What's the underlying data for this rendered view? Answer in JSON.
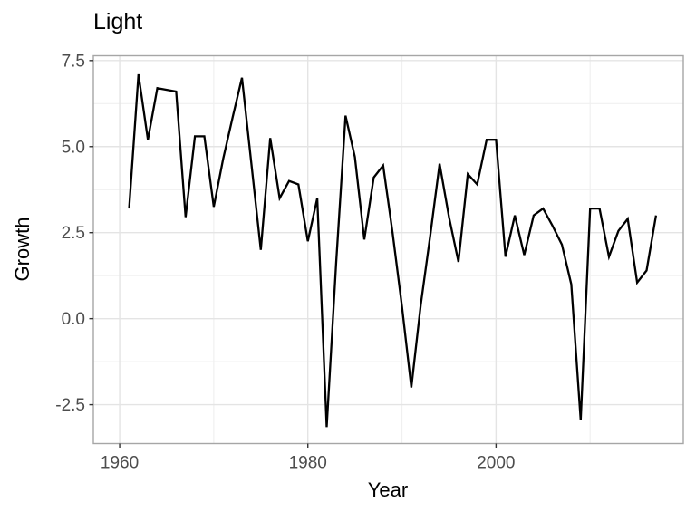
{
  "chart_data": {
    "type": "line",
    "title": "Light",
    "xlabel": "Year",
    "ylabel": "Growth",
    "legend_position": "none",
    "grid": true,
    "x_range": [
      1957.2,
      2019.9
    ],
    "y_range": [
      -3.63,
      7.64
    ],
    "x_ticks": [
      1960,
      1980,
      2000
    ],
    "x_tick_labels": [
      "1960",
      "1980",
      "2000"
    ],
    "x_minor_ticks": [
      1970,
      1990,
      2010
    ],
    "y_ticks": [
      7.5,
      5.0,
      2.5,
      0.0,
      -2.5
    ],
    "y_tick_labels": [
      "7.5",
      "5.0",
      "2.5",
      "0.0",
      "-2.5"
    ],
    "y_minor_ticks": [
      6.25,
      3.75,
      1.25,
      -1.25
    ],
    "x": [
      1961,
      1962,
      1963,
      1964,
      1965,
      1966,
      1967,
      1968,
      1969,
      1970,
      1971,
      1972,
      1973,
      1974,
      1975,
      1976,
      1977,
      1978,
      1979,
      1980,
      1981,
      1982,
      1983,
      1984,
      1985,
      1986,
      1987,
      1988,
      1989,
      1990,
      1991,
      1992,
      1993,
      1994,
      1995,
      1996,
      1997,
      1998,
      1999,
      2000,
      2001,
      2002,
      2003,
      2004,
      2005,
      2006,
      2007,
      2008,
      2009,
      2010,
      2011,
      2012,
      2013,
      2014,
      2015,
      2016,
      2017
    ],
    "values": [
      3.2,
      7.1,
      5.2,
      6.7,
      6.65,
      6.6,
      2.95,
      5.3,
      5.3,
      3.25,
      4.65,
      5.85,
      7.0,
      4.5,
      2.0,
      5.25,
      3.5,
      4.0,
      3.9,
      2.25,
      3.5,
      -3.15,
      1.6,
      5.9,
      4.7,
      2.3,
      4.1,
      4.45,
      2.5,
      0.35,
      -2.0,
      0.4,
      2.4,
      4.5,
      2.95,
      1.65,
      4.2,
      3.9,
      5.2,
      5.2,
      1.8,
      3.0,
      1.85,
      3.0,
      3.2,
      2.7,
      2.15,
      1.0,
      -2.95,
      3.2,
      3.2,
      1.8,
      2.55,
      2.9,
      1.05,
      1.4,
      3.0
    ],
    "colors": {
      "line": "#000000",
      "panel_background": "#ffffff",
      "panel_border": "#a6a6a6",
      "grid_major": "#e4e4e4",
      "grid_minor": "#f0f0f0",
      "tick_mark": "#333333",
      "tick_label": "#4d4d4d",
      "title_text": "#000000"
    }
  }
}
